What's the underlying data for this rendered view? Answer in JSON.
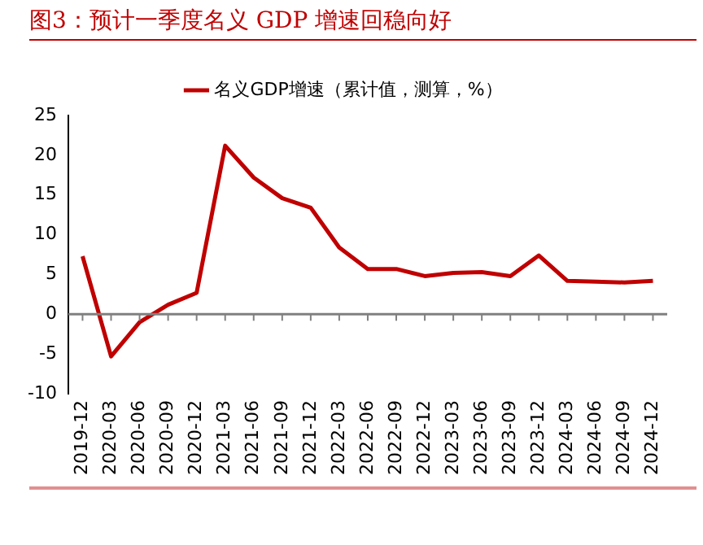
{
  "chart_data": {
    "type": "line",
    "title": "图3：预计一季度名义 GDP 增速回稳向好",
    "categories": [
      "2019-12",
      "2020-03",
      "2020-06",
      "2020-09",
      "2020-12",
      "2021-03",
      "2021-06",
      "2021-09",
      "2021-12",
      "2022-03",
      "2022-06",
      "2022-09",
      "2022-12",
      "2023-03",
      "2023-06",
      "2023-09",
      "2023-12",
      "2024-03",
      "2024-06",
      "2024-09",
      "2024-12"
    ],
    "series": [
      {
        "name": "名义GDP增速（累计值，测算，%）",
        "color": "#c00000",
        "values": [
          7.3,
          -5.3,
          -1.0,
          1.2,
          2.7,
          21.2,
          17.2,
          14.6,
          13.4,
          8.4,
          5.7,
          5.7,
          4.8,
          5.2,
          5.3,
          4.8,
          7.4,
          4.2,
          4.1,
          4.0,
          4.2
        ]
      }
    ],
    "ylim": [
      -10,
      25
    ],
    "yticks": [
      -10,
      -5,
      0,
      5,
      10,
      15,
      20,
      25
    ],
    "legend": "top",
    "marker": "none",
    "line_style": "solid"
  }
}
